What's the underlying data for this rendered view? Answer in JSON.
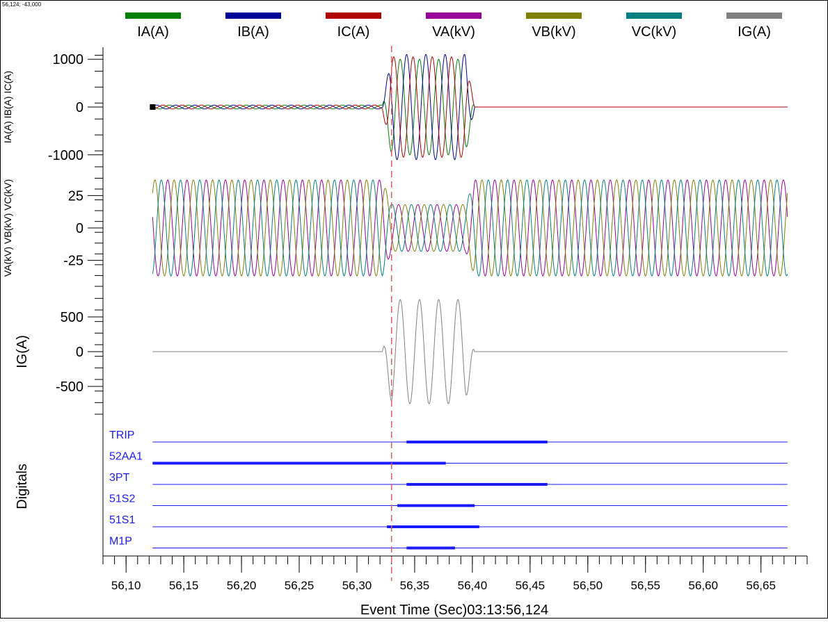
{
  "coordinate_readout": "56,124; -43,000",
  "chart_data": {
    "type": "line",
    "title": "",
    "xlabel": "Event Time (Sec)03:13:56,124",
    "xlim": [
      56.08,
      56.69
    ],
    "x_ticks": [
      "56,10",
      "56,15",
      "56,20",
      "56,25",
      "56,30",
      "56,35",
      "56,40",
      "56,45",
      "56,50",
      "56,55",
      "56,60",
      "56,65"
    ],
    "x_tick_values": [
      56.1,
      56.15,
      56.2,
      56.25,
      56.3,
      56.35,
      56.4,
      56.45,
      56.5,
      56.55,
      56.6,
      56.65
    ],
    "cursor_time": 56.33,
    "legend": [
      {
        "name": "IA(A)",
        "color": "#008000"
      },
      {
        "name": "IB(A)",
        "color": "#000099"
      },
      {
        "name": "IC(A)",
        "color": "#b30000"
      },
      {
        "name": "VA(kV)",
        "color": "#990099"
      },
      {
        "name": "VB(kV)",
        "color": "#808000"
      },
      {
        "name": "VC(kV)",
        "color": "#008080"
      },
      {
        "name": "IG(A)",
        "color": "#808080"
      }
    ],
    "panels": [
      {
        "id": "currents",
        "ylabel": "IA(A) IB(A) IC(A)",
        "ylim": [
          -1250,
          1250
        ],
        "y_ticks": [
          {
            "v": 1000,
            "label": "1000"
          },
          {
            "v": 0,
            "label": "0"
          },
          {
            "v": -1000,
            "label": "-1000"
          }
        ],
        "series": [
          {
            "name": "IA(A)",
            "color": "#008000",
            "pre_fault_amp": 40,
            "fault_amp": 1000,
            "post_fault_amp": 0,
            "phase_deg": 0
          },
          {
            "name": "IB(A)",
            "color": "#000099",
            "pre_fault_amp": 40,
            "fault_amp": 1100,
            "post_fault_amp": 0,
            "phase_deg": -120
          },
          {
            "name": "IC(A)",
            "color": "#b30000",
            "pre_fault_amp": 40,
            "fault_amp": 1050,
            "post_fault_amp": 0,
            "phase_deg": 120
          }
        ]
      },
      {
        "id": "voltages",
        "ylabel": "VA(kV) VB(kV) VC(kV)",
        "ylim": [
          -45,
          45
        ],
        "y_ticks": [
          {
            "v": 25,
            "label": "25"
          },
          {
            "v": 0,
            "label": "0"
          },
          {
            "v": -25,
            "label": "-25"
          }
        ],
        "series": [
          {
            "name": "VA(kV)",
            "color": "#990099",
            "pre_fault_amp": 37,
            "fault_amp": 18,
            "post_fault_amp": 37,
            "phase_deg": 30
          },
          {
            "name": "VB(kV)",
            "color": "#808000",
            "pre_fault_amp": 37,
            "fault_amp": 18,
            "post_fault_amp": 37,
            "phase_deg": -90
          },
          {
            "name": "VC(kV)",
            "color": "#008080",
            "pre_fault_amp": 37,
            "fault_amp": 18,
            "post_fault_amp": 37,
            "phase_deg": 150
          }
        ]
      },
      {
        "id": "ground",
        "ylabel": "IG(A)",
        "ylim": [
          -900,
          900
        ],
        "y_ticks": [
          {
            "v": 500,
            "label": "500"
          },
          {
            "v": 0,
            "label": "0"
          },
          {
            "v": -500,
            "label": "-500"
          }
        ],
        "series": [
          {
            "name": "IG(A)",
            "color": "#808080",
            "pre_fault_amp": 0,
            "fault_amp": 750,
            "post_fault_amp": 0,
            "phase_deg": 0
          }
        ]
      }
    ],
    "signal_span": [
      56.123,
      56.673
    ],
    "frequency_hz": 60,
    "fault_window": [
      56.322,
      56.402
    ],
    "digitals_label": "Digitals",
    "digitals": [
      {
        "name": "TRIP",
        "active": [
          56.343,
          56.465
        ]
      },
      {
        "name": "52AA1",
        "active": [
          56.123,
          56.377
        ]
      },
      {
        "name": "3PT",
        "active": [
          56.343,
          56.465
        ]
      },
      {
        "name": "51S2",
        "active": [
          56.335,
          56.402
        ]
      },
      {
        "name": "51S1",
        "active": [
          56.326,
          56.406
        ]
      },
      {
        "name": "M1P",
        "active": [
          56.343,
          56.385
        ]
      }
    ],
    "digital_color": "#1a1aff",
    "cursor_color": "#e06060",
    "grid": false
  }
}
